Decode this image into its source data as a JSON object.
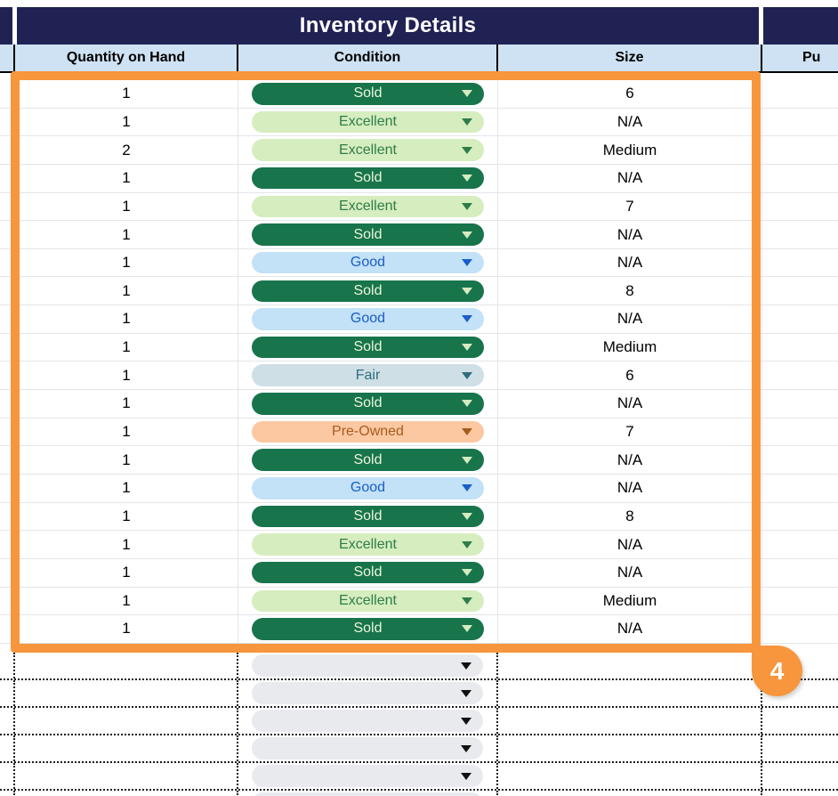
{
  "sheet": {
    "title": "Inventory Details",
    "columns": [
      "Quantity on Hand",
      "Condition",
      "Size",
      "Pu"
    ],
    "rows": [
      {
        "quantity": "1",
        "condition": "Sold",
        "size": "6"
      },
      {
        "quantity": "1",
        "condition": "Excellent",
        "size": "N/A"
      },
      {
        "quantity": "2",
        "condition": "Excellent",
        "size": "Medium"
      },
      {
        "quantity": "1",
        "condition": "Sold",
        "size": "N/A"
      },
      {
        "quantity": "1",
        "condition": "Excellent",
        "size": "7"
      },
      {
        "quantity": "1",
        "condition": "Sold",
        "size": "N/A"
      },
      {
        "quantity": "1",
        "condition": "Good",
        "size": "N/A"
      },
      {
        "quantity": "1",
        "condition": "Sold",
        "size": "8"
      },
      {
        "quantity": "1",
        "condition": "Good",
        "size": "N/A"
      },
      {
        "quantity": "1",
        "condition": "Sold",
        "size": "Medium"
      },
      {
        "quantity": "1",
        "condition": "Fair",
        "size": "6"
      },
      {
        "quantity": "1",
        "condition": "Sold",
        "size": "N/A"
      },
      {
        "quantity": "1",
        "condition": "Pre-Owned",
        "size": "7"
      },
      {
        "quantity": "1",
        "condition": "Sold",
        "size": "N/A"
      },
      {
        "quantity": "1",
        "condition": "Good",
        "size": "N/A"
      },
      {
        "quantity": "1",
        "condition": "Sold",
        "size": "8"
      },
      {
        "quantity": "1",
        "condition": "Excellent",
        "size": "N/A"
      },
      {
        "quantity": "1",
        "condition": "Sold",
        "size": "N/A"
      },
      {
        "quantity": "1",
        "condition": "Excellent",
        "size": "Medium"
      },
      {
        "quantity": "1",
        "condition": "Sold",
        "size": "N/A"
      }
    ],
    "condition_styles": {
      "Sold": {
        "bg": "#17744B",
        "text": "#EDF6DC",
        "arrow": "#D6EBC0"
      },
      "Excellent": {
        "bg": "#D6EDBF",
        "text": "#2E7D49",
        "arrow": "#2E7D49"
      },
      "Good": {
        "bg": "#C3E1F7",
        "text": "#1A5EC8",
        "arrow": "#1A5EC8"
      },
      "Fair": {
        "bg": "#CEDFE6",
        "text": "#2F6D7E",
        "arrow": "#2F6D7E"
      },
      "Pre-Owned": {
        "bg": "#FBC8A2",
        "text": "#A85B1E",
        "arrow": "#A85B1E"
      },
      "empty": {
        "bg": "#E9EAEE",
        "text": "#000000",
        "arrow": "#111111"
      }
    },
    "empty_rows": {
      "count": 6
    },
    "annotation": {
      "badge_label": "4",
      "color": "#F7963C"
    },
    "colors": {
      "navy_band": "#202254",
      "header_bg": "#CFE2F3",
      "grid_line": "#E3E5E8",
      "selection_orange": "#F7963C"
    }
  }
}
